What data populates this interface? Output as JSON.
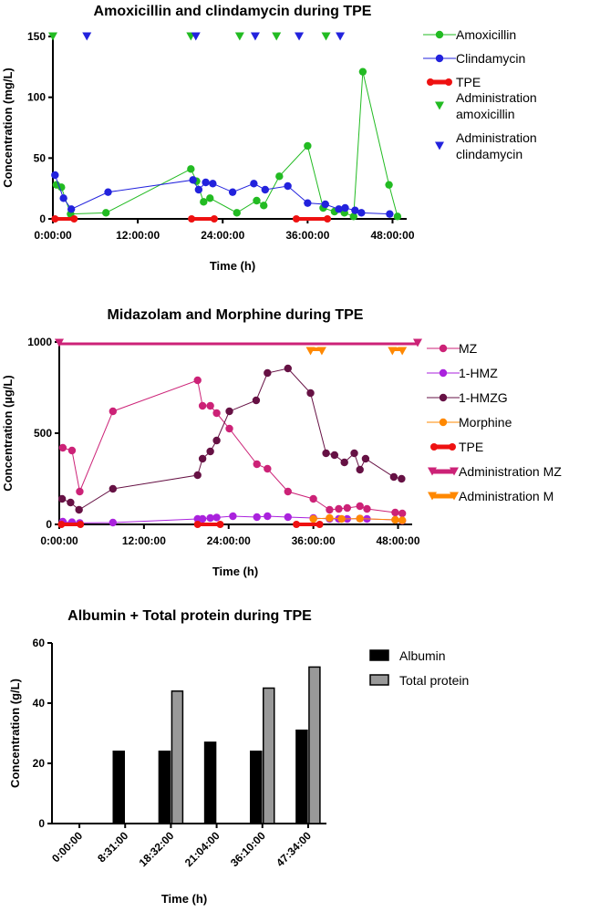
{
  "chart_data": [
    {
      "type": "line",
      "title": "Amoxicillin and clindamycin during TPE",
      "xlabel": "Time (h)",
      "ylabel": "Concentration (mg/L)",
      "xlim": [
        0,
        50
      ],
      "ylim": [
        0,
        150
      ],
      "xticks": [
        0,
        12,
        24,
        36,
        48
      ],
      "xtick_labels": [
        "0:00:00",
        "12:00:00",
        "24:00:00",
        "36:00:00",
        "48:00:00"
      ],
      "yticks": [
        0,
        50,
        100,
        150
      ],
      "ytick_labels": [
        "0",
        "50",
        "100",
        "150"
      ],
      "series": [
        {
          "name": "Amoxicillin",
          "color": "#22bb22",
          "marker": "circle",
          "x": [
            0.5,
            1.2,
            2.5,
            7.5,
            19.5,
            20.3,
            21.3,
            22.2,
            26.0,
            28.8,
            29.8,
            32.0,
            36.0,
            38.2,
            39.8,
            41.2,
            42.5,
            43.8,
            47.5,
            48.7
          ],
          "y": [
            28,
            26,
            4,
            5,
            41,
            31,
            14,
            17,
            5,
            15,
            11,
            35,
            60,
            9,
            6,
            5,
            2,
            121,
            28,
            2
          ]
        },
        {
          "name": "Clindamycin",
          "color": "#2222dd",
          "marker": "circle",
          "x": [
            0.3,
            1.5,
            2.6,
            7.8,
            19.8,
            20.6,
            21.6,
            22.6,
            25.4,
            28.4,
            30.0,
            33.2,
            36.0,
            38.5,
            40.4,
            41.3,
            42.7,
            43.6,
            47.6
          ],
          "y": [
            36,
            17,
            8,
            22,
            32,
            24,
            30,
            29,
            22,
            29,
            24,
            27,
            13,
            12,
            8,
            9,
            7,
            5,
            4
          ]
        },
        {
          "name": "TPE",
          "color": "#ee1111",
          "marker": "bar",
          "segments": [
            [
              0.3,
              3.0
            ],
            [
              19.6,
              22.8
            ],
            [
              34.4,
              38.8
            ]
          ]
        },
        {
          "name": "Administration amoxicillin",
          "color": "#22bb22",
          "marker": "triangle-down",
          "x": [
            0,
            19.5,
            26.4,
            31.6,
            38.6
          ]
        },
        {
          "name": "Administration clindamycin",
          "color": "#2222dd",
          "marker": "triangle-down",
          "x": [
            4.8,
            20.2,
            28.6,
            34.8,
            40.6
          ]
        }
      ]
    },
    {
      "type": "line",
      "title": "Midazolam and Morphine during TPE",
      "xlabel": "Time (h)",
      "ylabel": "Concentration (µg/L)",
      "xlim": [
        0,
        50
      ],
      "ylim": [
        0,
        1000
      ],
      "xticks": [
        0,
        12,
        24,
        36,
        48
      ],
      "xtick_labels": [
        "0:00:00",
        "12:00:00",
        "24:00:00",
        "36:00:00",
        "48:00:00"
      ],
      "yticks": [
        0,
        500,
        1000
      ],
      "ytick_labels": [
        "0",
        "500",
        "1000"
      ],
      "series": [
        {
          "name": "MZ",
          "color": "#cc2277",
          "marker": "circle",
          "x": [
            0.5,
            1.8,
            2.9,
            7.6,
            19.6,
            20.3,
            21.4,
            22.3,
            24.1,
            28.0,
            29.5,
            32.4,
            36.0,
            38.3,
            39.6,
            40.8,
            42.6,
            43.6,
            47.6,
            48.6
          ],
          "y": [
            420,
            405,
            180,
            620,
            790,
            650,
            650,
            610,
            525,
            330,
            305,
            180,
            140,
            80,
            85,
            90,
            100,
            85,
            65,
            60
          ]
        },
        {
          "name": "1-HMZ",
          "color": "#aa22dd",
          "marker": "circle",
          "x": [
            0.5,
            1.8,
            2.9,
            7.6,
            19.6,
            20.3,
            21.4,
            22.3,
            24.6,
            28.0,
            29.5,
            32.4,
            36.0,
            38.3,
            39.6,
            40.8,
            42.6,
            43.6,
            47.6,
            48.6
          ],
          "y": [
            15,
            12,
            8,
            10,
            30,
            30,
            35,
            38,
            45,
            40,
            45,
            40,
            35,
            30,
            30,
            30,
            32,
            30,
            25,
            20
          ]
        },
        {
          "name": "1-HMZG",
          "color": "#661144",
          "marker": "circle",
          "x": [
            0.4,
            1.6,
            2.8,
            7.6,
            19.6,
            20.3,
            21.4,
            22.3,
            24.1,
            27.9,
            29.5,
            32.4,
            35.6,
            37.8,
            39.0,
            40.4,
            41.8,
            42.6,
            43.4,
            47.4,
            48.5
          ],
          "y": [
            140,
            120,
            80,
            195,
            270,
            360,
            400,
            460,
            620,
            680,
            830,
            855,
            720,
            390,
            380,
            340,
            390,
            300,
            360,
            260,
            250
          ]
        },
        {
          "name": "Morphine",
          "color": "#ff8800",
          "marker": "circle",
          "x": [
            36.0,
            38.3,
            40.0,
            42.6,
            47.6,
            48.6
          ],
          "y": [
            30,
            35,
            30,
            32,
            25,
            22
          ]
        },
        {
          "name": "TPE",
          "color": "#ee1111",
          "marker": "bar",
          "segments": [
            [
              0.3,
              3.0
            ],
            [
              19.6,
              22.8
            ],
            [
              33.6,
              36.9
            ]
          ]
        },
        {
          "name": "Administration MZ",
          "color": "#cc2277",
          "marker": "line-triangle",
          "y": 990
        },
        {
          "name": "Administration M",
          "color": "#ff8800",
          "marker": "triangle-down",
          "segments": [
            [
              35.6,
              37.2
            ],
            [
              47.2,
              48.6
            ]
          ],
          "y": 960
        }
      ]
    },
    {
      "type": "bar",
      "title": "Albumin + Total protein during TPE",
      "xlabel": "Time (h)",
      "ylabel": "Concentration (g/L)",
      "ylim": [
        0,
        60
      ],
      "yticks": [
        0,
        20,
        40,
        60
      ],
      "ytick_labels": [
        "0",
        "20",
        "40",
        "60"
      ],
      "categories": [
        "0:00:00",
        "8:31:00",
        "18:32:00",
        "21:04:00",
        "36:10:00",
        "47:34:00"
      ],
      "series": [
        {
          "name": "Albumin",
          "color": "#000000",
          "values": [
            null,
            24,
            24,
            27,
            24,
            31
          ]
        },
        {
          "name": "Total protein",
          "color": "#999999",
          "values": [
            null,
            null,
            44,
            null,
            45,
            52
          ]
        }
      ]
    }
  ]
}
